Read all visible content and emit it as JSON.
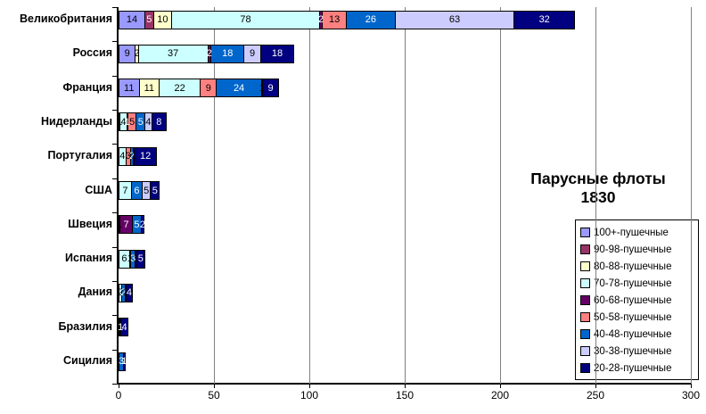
{
  "title": {
    "line1": "Парусные флоты",
    "line2": "1830"
  },
  "chart_data": {
    "type": "bar",
    "orientation": "horizontal",
    "stacked": true,
    "title": "Парусные флоты 1830",
    "xlabel": "",
    "ylabel": "",
    "xlim": [
      0,
      300
    ],
    "x_ticks": [
      0,
      50,
      100,
      150,
      200,
      250,
      300
    ],
    "grid": true,
    "legend_position": "right",
    "categories": [
      "Великобритания",
      "Россия",
      "Франция",
      "Нидерланды",
      "Португалия",
      "США",
      "Швеция",
      "Испания",
      "Дания",
      "Бразилия",
      "Сицилия"
    ],
    "series": [
      {
        "name": "100+-пушечные",
        "color": "#9999FF",
        "label_color": "#000000",
        "values": [
          14,
          9,
          11,
          0,
          0,
          0,
          0,
          0,
          0,
          0,
          0
        ]
      },
      {
        "name": "90-98-пушечные",
        "color": "#993366",
        "label_color": "#FFFFFF",
        "values": [
          5,
          0,
          0,
          0,
          0,
          0,
          0,
          0,
          0,
          0,
          0
        ]
      },
      {
        "name": "80-88-пушечные",
        "color": "#FFFFCC",
        "label_color": "#000000",
        "values": [
          10,
          2,
          11,
          1,
          0,
          0,
          1,
          0,
          0,
          0,
          0
        ]
      },
      {
        "name": "70-78-пушечные",
        "color": "#CCFFFF",
        "label_color": "#000000",
        "values": [
          78,
          37,
          22,
          4,
          4,
          7,
          0,
          6,
          2,
          0,
          0
        ]
      },
      {
        "name": "60-68-пушечные",
        "color": "#660066",
        "label_color": "#FFFFFF",
        "values": [
          2,
          2,
          0,
          1,
          0,
          0,
          7,
          0,
          0,
          0,
          0
        ]
      },
      {
        "name": "50-58-пушечные",
        "color": "#FF8080",
        "label_color": "#000000",
        "values": [
          13,
          0,
          9,
          5,
          3,
          0,
          0,
          1,
          0,
          1,
          0
        ]
      },
      {
        "name": "40-48-пушечные",
        "color": "#0066CC",
        "label_color": "#FFFFFF",
        "values": [
          26,
          18,
          24,
          5,
          2,
          6,
          5,
          3,
          2,
          1,
          3
        ]
      },
      {
        "name": "30-38-пушечные",
        "color": "#CCCCFF",
        "label_color": "#000000",
        "values": [
          63,
          9,
          1,
          4,
          1,
          5,
          0,
          1,
          1,
          0,
          0
        ]
      },
      {
        "name": "20-28-пушечные",
        "color": "#000080",
        "label_color": "#FFFFFF",
        "values": [
          32,
          18,
          9,
          8,
          12,
          5,
          2,
          5,
          4,
          4,
          1
        ]
      }
    ]
  }
}
